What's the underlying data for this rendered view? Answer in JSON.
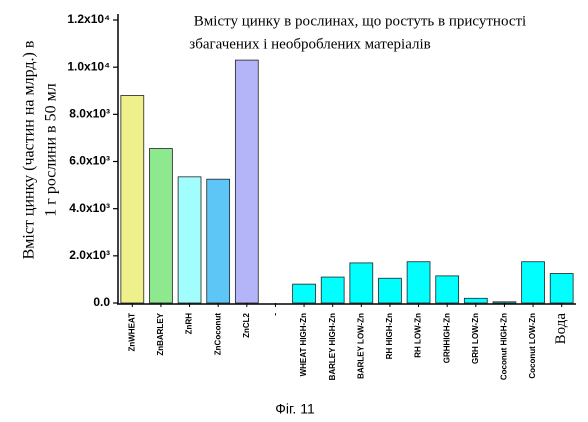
{
  "chart_data": {
    "type": "bar",
    "title": [
      "Вмісту цинку в рослинах, що ростуть в присутності",
      "збагачених і необроблених матеріалів"
    ],
    "ylabel": [
      "Вміст цинку (частин на млрд.) в",
      "1 г рослини в 50 мл"
    ],
    "categories": [
      "ZnWHEAT",
      "ZnBARLEY",
      "ZnRH",
      "ZnCoconut",
      "ZnCL2",
      "-",
      "WHEAT HIGH-Zn",
      "BARLEY HIGH-Zn",
      "BARLEY LOW-Zn",
      "RH HIGH-Zn",
      "RH LOW-Zn",
      "GRHHIGH-Zn",
      "GRH LOW-Zn",
      "Coconut HIGH-Zn",
      "Coconut LOW-Zn",
      "Вода"
    ],
    "values": [
      8800,
      6550,
      5350,
      5250,
      10300,
      null,
      800,
      1100,
      1700,
      1050,
      1750,
      1150,
      200,
      50,
      1750,
      1250
    ],
    "colors": [
      "#eef08c",
      "#8ee88e",
      "#a2fdfd",
      "#5ec6f6",
      "#b4b4f8",
      "#00ffff",
      "#00ffff",
      "#00ffff",
      "#00ffff",
      "#00ffff",
      "#00ffff",
      "#00ffff",
      "#00ffff",
      "#00ffff",
      "#00ffff",
      "#00ffff"
    ],
    "ylim": [
      0,
      12000
    ],
    "yticks": [
      {
        "value": 0,
        "label": "0.0"
      },
      {
        "value": 2000,
        "label": "2.0x10³"
      },
      {
        "value": 4000,
        "label": "4.0x10³"
      },
      {
        "value": 6000,
        "label": "6.0x10³"
      },
      {
        "value": 8000,
        "label": "8.0x10³"
      },
      {
        "value": 10000,
        "label": "1.0x10⁴"
      },
      {
        "value": 12000,
        "label": "1.2x10⁴"
      }
    ],
    "caption": "Фіг. 11"
  }
}
